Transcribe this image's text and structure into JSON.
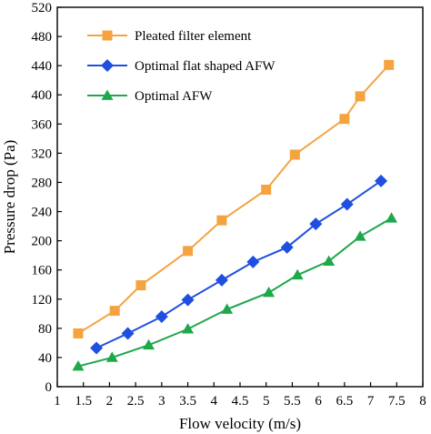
{
  "chart_data": {
    "type": "line",
    "xlabel": "Flow velocity (m/s)",
    "ylabel": "Pressure drop (Pa)",
    "xlim": [
      1,
      8
    ],
    "ylim": [
      0,
      520
    ],
    "xticks": [
      1,
      1.5,
      2,
      2.5,
      3,
      3.5,
      4,
      4.5,
      5,
      5.5,
      6,
      6.5,
      7,
      7.5,
      8
    ],
    "xtick_labels": [
      "1",
      "1.5",
      "2",
      "2.5",
      "3",
      "3.5",
      "4",
      "4.5",
      "5",
      "5.5",
      "6",
      "6.5",
      "7",
      "7.5",
      "8"
    ],
    "yticks": [
      0,
      40,
      80,
      120,
      160,
      200,
      240,
      280,
      320,
      360,
      400,
      440,
      480,
      520
    ],
    "ytick_labels": [
      "0",
      "40",
      "80",
      "120",
      "160",
      "200",
      "240",
      "280",
      "320",
      "360",
      "400",
      "440",
      "480",
      "520"
    ],
    "grid": false,
    "legend_position": "top-left",
    "series": [
      {
        "name": "Pleated filter element",
        "color": "#F5A340",
        "marker": "square",
        "x": [
          1.4,
          2.1,
          2.6,
          3.5,
          4.15,
          5.0,
          5.55,
          6.5,
          6.8,
          7.35
        ],
        "y": [
          73,
          104,
          139,
          186,
          228,
          270,
          318,
          367,
          398,
          441
        ]
      },
      {
        "name": "Optimal flat shaped AFW",
        "color": "#1F4FE0",
        "marker": "diamond",
        "x": [
          1.75,
          2.35,
          3.0,
          3.5,
          4.15,
          4.75,
          5.4,
          5.95,
          6.55,
          7.2
        ],
        "y": [
          53,
          73,
          96,
          119,
          146,
          171,
          191,
          223,
          250,
          282
        ]
      },
      {
        "name": "Optimal AFW",
        "color": "#1DA84A",
        "marker": "triangle",
        "x": [
          1.4,
          2.05,
          2.75,
          3.5,
          4.25,
          5.05,
          5.6,
          6.2,
          6.8,
          7.4
        ],
        "y": [
          28,
          40,
          57,
          79,
          106,
          129,
          153,
          172,
          206,
          231
        ]
      }
    ]
  }
}
